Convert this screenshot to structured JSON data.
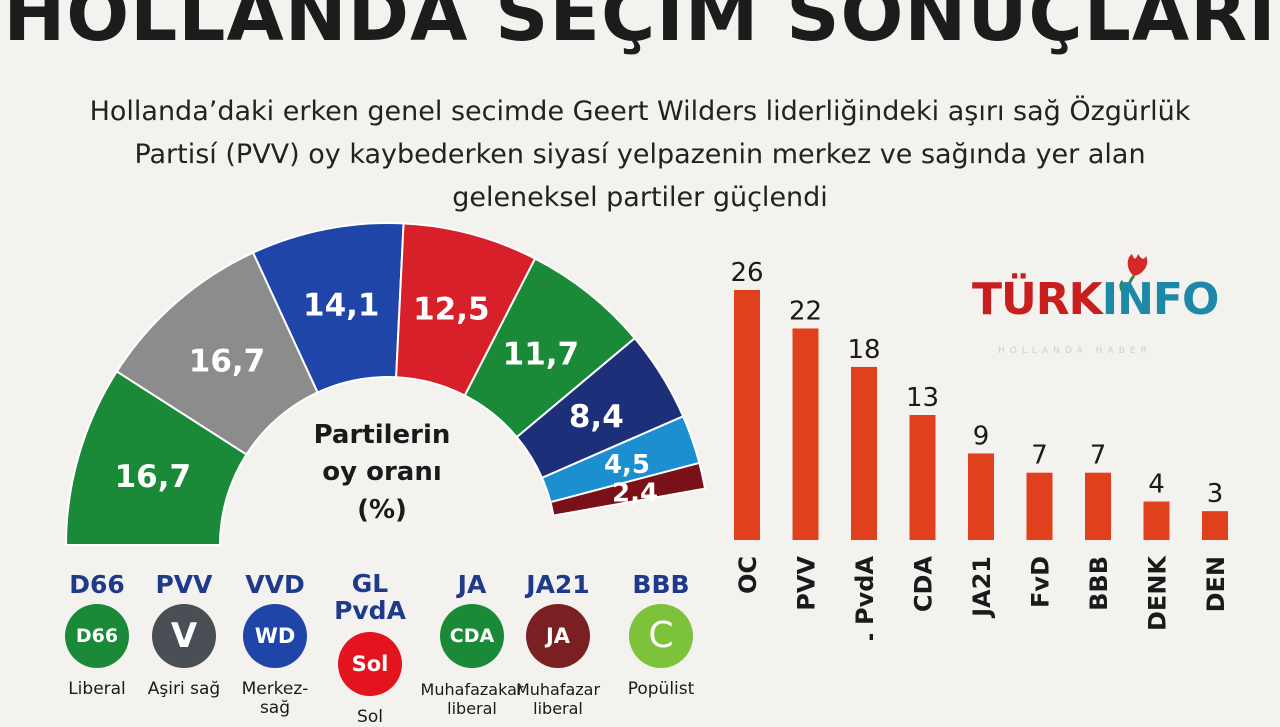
{
  "title": "HOLLANDA SEÇIM SONUÇLARI",
  "subtitle": {
    "line1": "Hollanda’daki erken genel secimde Geert Wilders liderliğindeki aşırı sağ Özgürlük",
    "line2": "Partisí (PVV) oy kaybederken siyasí yelpazenin merkez ve sağında yer alan",
    "line3": "geleneksel partiler güçlendi"
  },
  "center_label": {
    "line1": "Partilerin",
    "line2": "oy oranı",
    "line3": "(%)"
  },
  "logo": {
    "text_a": "TÜRK",
    "text_b": "INFO",
    "tagline": "HOLLANDA HABER",
    "icon": "tulip-icon"
  },
  "chart_data": [
    {
      "type": "pie",
      "subtype": "half-donut",
      "title": "",
      "slices": [
        {
          "value": 16.7,
          "label": "16,7",
          "color": "#1a8a38"
        },
        {
          "value": 16.7,
          "label": "16,7",
          "color": "#8c8c8c"
        },
        {
          "value": 14.1,
          "label": "14,1",
          "color": "#1f45a8"
        },
        {
          "value": 12.5,
          "label": "12,5",
          "color": "#d8202a"
        },
        {
          "value": 11.7,
          "label": "11,7",
          "color": "#1a8a38"
        },
        {
          "value": 8.4,
          "label": "8,4",
          "color": "#1e2f7a"
        },
        {
          "value": 4.5,
          "label": "4,5",
          "color": "#1c8fd0"
        },
        {
          "value": 2.4,
          "label": "2,4",
          "color": "#7a1018"
        }
      ]
    },
    {
      "type": "bar",
      "title": "",
      "categories": [
        "OC",
        "PVV",
        "GL PvdA",
        "CDA",
        "JA21",
        "FvD",
        "BBB",
        "DENK",
        "DEN"
      ],
      "values": [
        26,
        22,
        18,
        13,
        9,
        7,
        7,
        4,
        3
      ],
      "value_labels": [
        "26",
        "22",
        "18",
        "13",
        "9",
        "7",
        "7",
        "4",
        "3"
      ],
      "color": "#e0401c",
      "ylim": [
        0,
        26
      ]
    }
  ],
  "parties": [
    {
      "abbr": "D66",
      "badge": "D66",
      "badge_color": "#1a8a38",
      "desc1": "Liberal",
      "desc2": ""
    },
    {
      "abbr": "PVV",
      "badge": "V",
      "badge_color": "#4a4f55",
      "desc1": "Aşiri sağ",
      "desc2": ""
    },
    {
      "abbr": "VVD",
      "badge": "WD",
      "badge_color": "#1f45a8",
      "desc1": "Merkez-",
      "desc2": "sağ"
    },
    {
      "abbr": "GL PvdA",
      "abbr1": "GL",
      "abbr2": "PvdA",
      "badge": "Sol",
      "badge_color": "#e3141e",
      "desc1": "Sol",
      "desc2": ""
    },
    {
      "abbr": "JA",
      "badge": "CDA",
      "badge_color": "#1a8a38",
      "desc1": "Muhafazakar",
      "desc2": "liberal"
    },
    {
      "abbr": "JA21",
      "badge": "JA",
      "badge_color": "#7a1f22",
      "desc1": "Muhafazar",
      "desc2": "liberal"
    },
    {
      "abbr": "BBB",
      "badge": "C",
      "badge_color": "#7cc23a",
      "desc1": "Popülist",
      "desc2": ""
    }
  ]
}
